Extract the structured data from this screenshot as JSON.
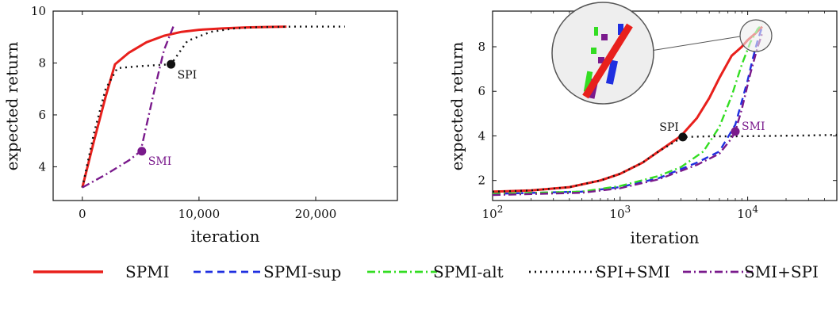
{
  "legend": [
    {
      "name": "SPMI",
      "color": "#e8201c",
      "dash": "",
      "width": 3
    },
    {
      "name": "SPMI-sup",
      "color": "#1f2fe0",
      "dash": "9 6",
      "width": 2.4
    },
    {
      "name": "SPMI-alt",
      "color": "#33dd22",
      "dash": "10 4 2 4",
      "width": 2.4
    },
    {
      "name": "SPI+SMI",
      "color": "#111111",
      "dash": "2 5",
      "width": 2.4
    },
    {
      "name": "SMI+SPI",
      "color": "#7a1a8c",
      "dash": "10 4 2 4",
      "width": 2.4
    }
  ],
  "chart_data": [
    {
      "type": "line",
      "xlabel": "iteration",
      "ylabel": "expected return",
      "xlim": [
        -2500,
        27000
      ],
      "ylim": [
        2.7,
        10
      ],
      "xticks": [
        0,
        10000,
        20000
      ],
      "xtick_labels": [
        "0",
        "10,000",
        "20,000"
      ],
      "yticks": [
        4,
        6,
        8,
        10
      ],
      "ytick_labels": [
        "4",
        "6",
        "8",
        "10"
      ],
      "series": [
        {
          "name": "SPMI",
          "x": [
            0,
            1000,
            2000,
            2800,
            4000,
            5500,
            7000,
            8500,
            10000,
            12000,
            14000,
            16000,
            17500
          ],
          "y": [
            3.2,
            5.0,
            6.7,
            7.95,
            8.4,
            8.8,
            9.05,
            9.2,
            9.28,
            9.33,
            9.37,
            9.39,
            9.4
          ]
        },
        {
          "name": "SPI+SMI",
          "x": [
            0,
            1000,
            2000,
            3000,
            5000,
            7600,
            9000,
            11000,
            13000,
            15000,
            18000,
            22500
          ],
          "y": [
            3.2,
            5.3,
            7.0,
            7.8,
            7.88,
            7.95,
            8.85,
            9.2,
            9.33,
            9.38,
            9.4,
            9.4
          ]
        },
        {
          "name": "SMI+SPI",
          "x": [
            0,
            2000,
            4000,
            5000,
            5600,
            6200,
            7000,
            7800
          ],
          "y": [
            3.2,
            3.7,
            4.25,
            4.6,
            5.8,
            7.0,
            8.5,
            9.4
          ]
        }
      ],
      "markers": [
        {
          "label": "SPI",
          "x": 7600,
          "y": 7.95,
          "color": "#111111"
        },
        {
          "label": "SMI",
          "x": 5100,
          "y": 4.6,
          "color": "#7a1a8c"
        }
      ]
    },
    {
      "type": "line",
      "xscale": "log",
      "xlabel": "iteration",
      "ylabel": "expected return",
      "xlim": [
        100,
        50000
      ],
      "ylim": [
        1.1,
        9.6
      ],
      "xticks": [
        100,
        1000,
        10000
      ],
      "xtick_labels": [
        "10^2",
        "10^3",
        "10^4"
      ],
      "yticks": [
        2,
        4,
        6,
        8
      ],
      "ytick_labels": [
        "2",
        "4",
        "6",
        "8"
      ],
      "series": [
        {
          "name": "SPMI",
          "x": [
            100,
            200,
            400,
            700,
            1000,
            1500,
            2000,
            3000,
            4000,
            5000,
            6000,
            7500,
            9000,
            10000,
            11500,
            13000
          ],
          "y": [
            1.5,
            1.55,
            1.7,
            2.0,
            2.3,
            2.8,
            3.3,
            4.0,
            4.8,
            5.7,
            6.6,
            7.6,
            8.0,
            8.3,
            8.6,
            8.9
          ]
        },
        {
          "name": "SPMI-sup",
          "x": [
            100,
            500,
            1000,
            2000,
            4000,
            6000,
            8000,
            10000,
            11000,
            12000,
            13000
          ],
          "y": [
            1.4,
            1.5,
            1.7,
            2.1,
            2.8,
            3.3,
            4.5,
            6.5,
            7.5,
            8.3,
            8.9
          ]
        },
        {
          "name": "SPMI-alt",
          "x": [
            100,
            500,
            1000,
            2000,
            3000,
            4500,
            6000,
            7500,
            9000,
            10500,
            12000,
            13000
          ],
          "y": [
            1.4,
            1.5,
            1.75,
            2.2,
            2.6,
            3.3,
            4.4,
            5.8,
            7.2,
            8.2,
            8.8,
            9.0
          ]
        },
        {
          "name": "SPI+SMI",
          "x": [
            100,
            200,
            400,
            700,
            1000,
            1500,
            2000,
            3100,
            5000,
            8000,
            15000,
            30000,
            50000
          ],
          "y": [
            1.5,
            1.55,
            1.7,
            2.0,
            2.3,
            2.8,
            3.3,
            3.95,
            3.98,
            3.98,
            4.0,
            4.02,
            4.05
          ]
        },
        {
          "name": "SMI+SPI",
          "x": [
            100,
            500,
            1000,
            2000,
            4000,
            6000,
            7500,
            8000,
            9000,
            10500,
            12000,
            13000
          ],
          "y": [
            1.35,
            1.45,
            1.65,
            2.05,
            2.7,
            3.2,
            3.9,
            4.2,
            5.2,
            6.8,
            8.0,
            8.6
          ]
        }
      ],
      "markers": [
        {
          "label": "SPI",
          "x": 3100,
          "y": 3.95,
          "color": "#111111"
        },
        {
          "label": "SMI",
          "x": 8000,
          "y": 4.2,
          "color": "#7a1a8c"
        }
      ]
    }
  ]
}
